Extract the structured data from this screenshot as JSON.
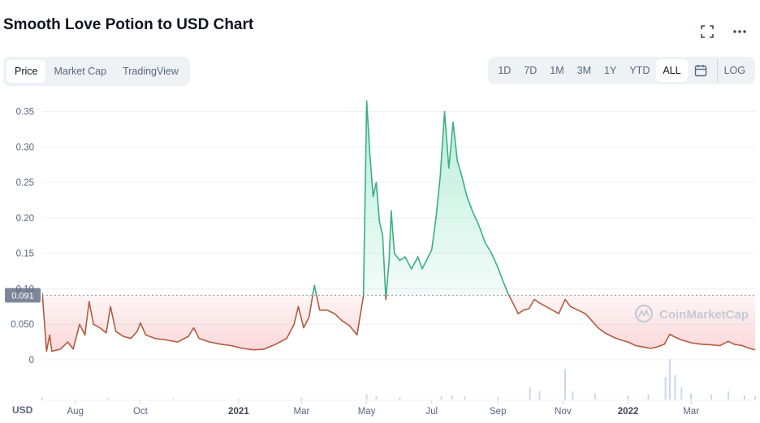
{
  "header": {
    "title": "Smooth Love Potion to USD Chart",
    "icons": [
      "fullscreen-icon",
      "more-icon"
    ]
  },
  "tabs": [
    {
      "label": "Price",
      "active": true
    },
    {
      "label": "Market Cap",
      "active": false
    },
    {
      "label": "TradingView",
      "active": false
    }
  ],
  "ranges": [
    {
      "label": "1D",
      "active": false
    },
    {
      "label": "7D",
      "active": false
    },
    {
      "label": "1M",
      "active": false
    },
    {
      "label": "3M",
      "active": false
    },
    {
      "label": "1Y",
      "active": false
    },
    {
      "label": "YTD",
      "active": false
    },
    {
      "label": "ALL",
      "active": true
    }
  ],
  "calendar_icon": "calendar-icon",
  "log_label": "LOG",
  "watermark": "CoinMarketCap",
  "colors": {
    "up": "#16c784",
    "down": "#ea3943",
    "line_down": "#b35a3e",
    "accent_line": "#3ab082"
  },
  "chart_data": {
    "type": "line",
    "title": "Smooth Love Potion to USD Chart",
    "xlabel": "",
    "ylabel": "",
    "ylim": [
      0,
      0.37
    ],
    "yticks": [
      0,
      0.05,
      0.1,
      0.15,
      0.2,
      0.25,
      0.3,
      0.35
    ],
    "ytick_labels": [
      "0",
      "0.050",
      "0.10",
      "0.15",
      "0.20",
      "0.25",
      "0.30",
      "0.35"
    ],
    "x_range": [
      "2020-07-01",
      "2022-04-30"
    ],
    "xticks": [
      {
        "date": "2020-08-01",
        "label": "Aug",
        "bold": false
      },
      {
        "date": "2020-10-01",
        "label": "Oct",
        "bold": false
      },
      {
        "date": "2021-01-01",
        "label": "2021",
        "bold": true
      },
      {
        "date": "2021-03-01",
        "label": "Mar",
        "bold": false
      },
      {
        "date": "2021-05-01",
        "label": "May",
        "bold": false
      },
      {
        "date": "2021-07-01",
        "label": "Jul",
        "bold": false
      },
      {
        "date": "2021-09-01",
        "label": "Sep",
        "bold": false
      },
      {
        "date": "2021-11-01",
        "label": "Nov",
        "bold": false
      },
      {
        "date": "2022-01-01",
        "label": "2022",
        "bold": true
      },
      {
        "date": "2022-03-01",
        "label": "Mar",
        "bold": false
      }
    ],
    "currency_label": "USD",
    "reference_price": 0.091,
    "reference_label": "0.091",
    "grid": true,
    "series": [
      {
        "points": [
          [
            "2020-07-01",
            0.095
          ],
          [
            "2020-07-05",
            0.012
          ],
          [
            "2020-07-08",
            0.035
          ],
          [
            "2020-07-10",
            0.012
          ],
          [
            "2020-07-18",
            0.015
          ],
          [
            "2020-07-25",
            0.025
          ],
          [
            "2020-07-30",
            0.015
          ],
          [
            "2020-08-05",
            0.05
          ],
          [
            "2020-08-10",
            0.035
          ],
          [
            "2020-08-14",
            0.082
          ],
          [
            "2020-08-18",
            0.05
          ],
          [
            "2020-08-24",
            0.045
          ],
          [
            "2020-08-30",
            0.038
          ],
          [
            "2020-09-03",
            0.075
          ],
          [
            "2020-09-08",
            0.04
          ],
          [
            "2020-09-15",
            0.033
          ],
          [
            "2020-09-22",
            0.03
          ],
          [
            "2020-09-28",
            0.04
          ],
          [
            "2020-10-01",
            0.052
          ],
          [
            "2020-10-06",
            0.035
          ],
          [
            "2020-10-15",
            0.03
          ],
          [
            "2020-10-25",
            0.028
          ],
          [
            "2020-11-05",
            0.025
          ],
          [
            "2020-11-15",
            0.033
          ],
          [
            "2020-11-20",
            0.045
          ],
          [
            "2020-11-25",
            0.03
          ],
          [
            "2020-12-05",
            0.025
          ],
          [
            "2020-12-15",
            0.022
          ],
          [
            "2020-12-25",
            0.02
          ],
          [
            "2021-01-05",
            0.016
          ],
          [
            "2021-01-15",
            0.014
          ],
          [
            "2021-01-25",
            0.015
          ],
          [
            "2021-02-05",
            0.022
          ],
          [
            "2021-02-15",
            0.03
          ],
          [
            "2021-02-22",
            0.05
          ],
          [
            "2021-02-26",
            0.075
          ],
          [
            "2021-03-03",
            0.045
          ],
          [
            "2021-03-08",
            0.06
          ],
          [
            "2021-03-13",
            0.105
          ],
          [
            "2021-03-18",
            0.07
          ],
          [
            "2021-03-25",
            0.07
          ],
          [
            "2021-04-01",
            0.065
          ],
          [
            "2021-04-08",
            0.055
          ],
          [
            "2021-04-15",
            0.048
          ],
          [
            "2021-04-22",
            0.035
          ],
          [
            "2021-04-28",
            0.09
          ],
          [
            "2021-05-01",
            0.365
          ],
          [
            "2021-05-04",
            0.29
          ],
          [
            "2021-05-07",
            0.23
          ],
          [
            "2021-05-10",
            0.25
          ],
          [
            "2021-05-13",
            0.195
          ],
          [
            "2021-05-16",
            0.175
          ],
          [
            "2021-05-19",
            0.085
          ],
          [
            "2021-05-22",
            0.14
          ],
          [
            "2021-05-24",
            0.21
          ],
          [
            "2021-05-27",
            0.15
          ],
          [
            "2021-06-01",
            0.14
          ],
          [
            "2021-06-06",
            0.145
          ],
          [
            "2021-06-12",
            0.128
          ],
          [
            "2021-06-18",
            0.145
          ],
          [
            "2021-06-22",
            0.128
          ],
          [
            "2021-06-26",
            0.14
          ],
          [
            "2021-07-01",
            0.155
          ],
          [
            "2021-07-05",
            0.2
          ],
          [
            "2021-07-09",
            0.26
          ],
          [
            "2021-07-13",
            0.35
          ],
          [
            "2021-07-17",
            0.27
          ],
          [
            "2021-07-21",
            0.335
          ],
          [
            "2021-07-25",
            0.28
          ],
          [
            "2021-07-29",
            0.26
          ],
          [
            "2021-08-03",
            0.23
          ],
          [
            "2021-08-08",
            0.21
          ],
          [
            "2021-08-14",
            0.19
          ],
          [
            "2021-08-20",
            0.165
          ],
          [
            "2021-08-26",
            0.15
          ],
          [
            "2021-09-01",
            0.13
          ],
          [
            "2021-09-06",
            0.11
          ],
          [
            "2021-09-10",
            0.095
          ],
          [
            "2021-09-15",
            0.08
          ],
          [
            "2021-09-20",
            0.065
          ],
          [
            "2021-09-25",
            0.07
          ],
          [
            "2021-09-30",
            0.072
          ],
          [
            "2021-10-05",
            0.085
          ],
          [
            "2021-10-10",
            0.08
          ],
          [
            "2021-10-16",
            0.075
          ],
          [
            "2021-10-22",
            0.07
          ],
          [
            "2021-10-28",
            0.065
          ],
          [
            "2021-11-03",
            0.085
          ],
          [
            "2021-11-08",
            0.075
          ],
          [
            "2021-11-15",
            0.07
          ],
          [
            "2021-11-22",
            0.065
          ],
          [
            "2021-11-28",
            0.055
          ],
          [
            "2021-12-04",
            0.045
          ],
          [
            "2021-12-10",
            0.038
          ],
          [
            "2021-12-18",
            0.032
          ],
          [
            "2021-12-25",
            0.028
          ],
          [
            "2022-01-01",
            0.025
          ],
          [
            "2022-01-08",
            0.02
          ],
          [
            "2022-01-15",
            0.018
          ],
          [
            "2022-01-22",
            0.016
          ],
          [
            "2022-01-28",
            0.018
          ],
          [
            "2022-02-04",
            0.022
          ],
          [
            "2022-02-09",
            0.036
          ],
          [
            "2022-02-14",
            0.032
          ],
          [
            "2022-02-20",
            0.028
          ],
          [
            "2022-03-01",
            0.024
          ],
          [
            "2022-03-10",
            0.022
          ],
          [
            "2022-03-20",
            0.021
          ],
          [
            "2022-03-28",
            0.02
          ],
          [
            "2022-04-05",
            0.026
          ],
          [
            "2022-04-10",
            0.022
          ],
          [
            "2022-04-18",
            0.02
          ],
          [
            "2022-04-25",
            0.016
          ],
          [
            "2022-04-30",
            0.014
          ]
        ]
      }
    ],
    "volume": {
      "unit": "relative",
      "points": [
        [
          "2020-07-01",
          0.05
        ],
        [
          "2020-09-01",
          0.04
        ],
        [
          "2020-11-01",
          0.03
        ],
        [
          "2021-01-01",
          0.03
        ],
        [
          "2021-03-01",
          0.05
        ],
        [
          "2021-05-01",
          0.12
        ],
        [
          "2021-05-10",
          0.08
        ],
        [
          "2021-06-01",
          0.05
        ],
        [
          "2021-07-10",
          0.08
        ],
        [
          "2021-07-20",
          0.1
        ],
        [
          "2021-08-01",
          0.08
        ],
        [
          "2021-09-01",
          0.06
        ],
        [
          "2021-10-01",
          0.3
        ],
        [
          "2021-10-10",
          0.2
        ],
        [
          "2021-11-03",
          0.75
        ],
        [
          "2021-11-10",
          0.2
        ],
        [
          "2021-12-01",
          0.15
        ],
        [
          "2022-01-01",
          0.1
        ],
        [
          "2022-01-20",
          0.12
        ],
        [
          "2022-02-05",
          0.55
        ],
        [
          "2022-02-09",
          1.0
        ],
        [
          "2022-02-14",
          0.6
        ],
        [
          "2022-02-20",
          0.3
        ],
        [
          "2022-03-01",
          0.15
        ],
        [
          "2022-03-20",
          0.12
        ],
        [
          "2022-04-05",
          0.2
        ],
        [
          "2022-04-20",
          0.1
        ],
        [
          "2022-04-30",
          0.08
        ]
      ]
    }
  }
}
